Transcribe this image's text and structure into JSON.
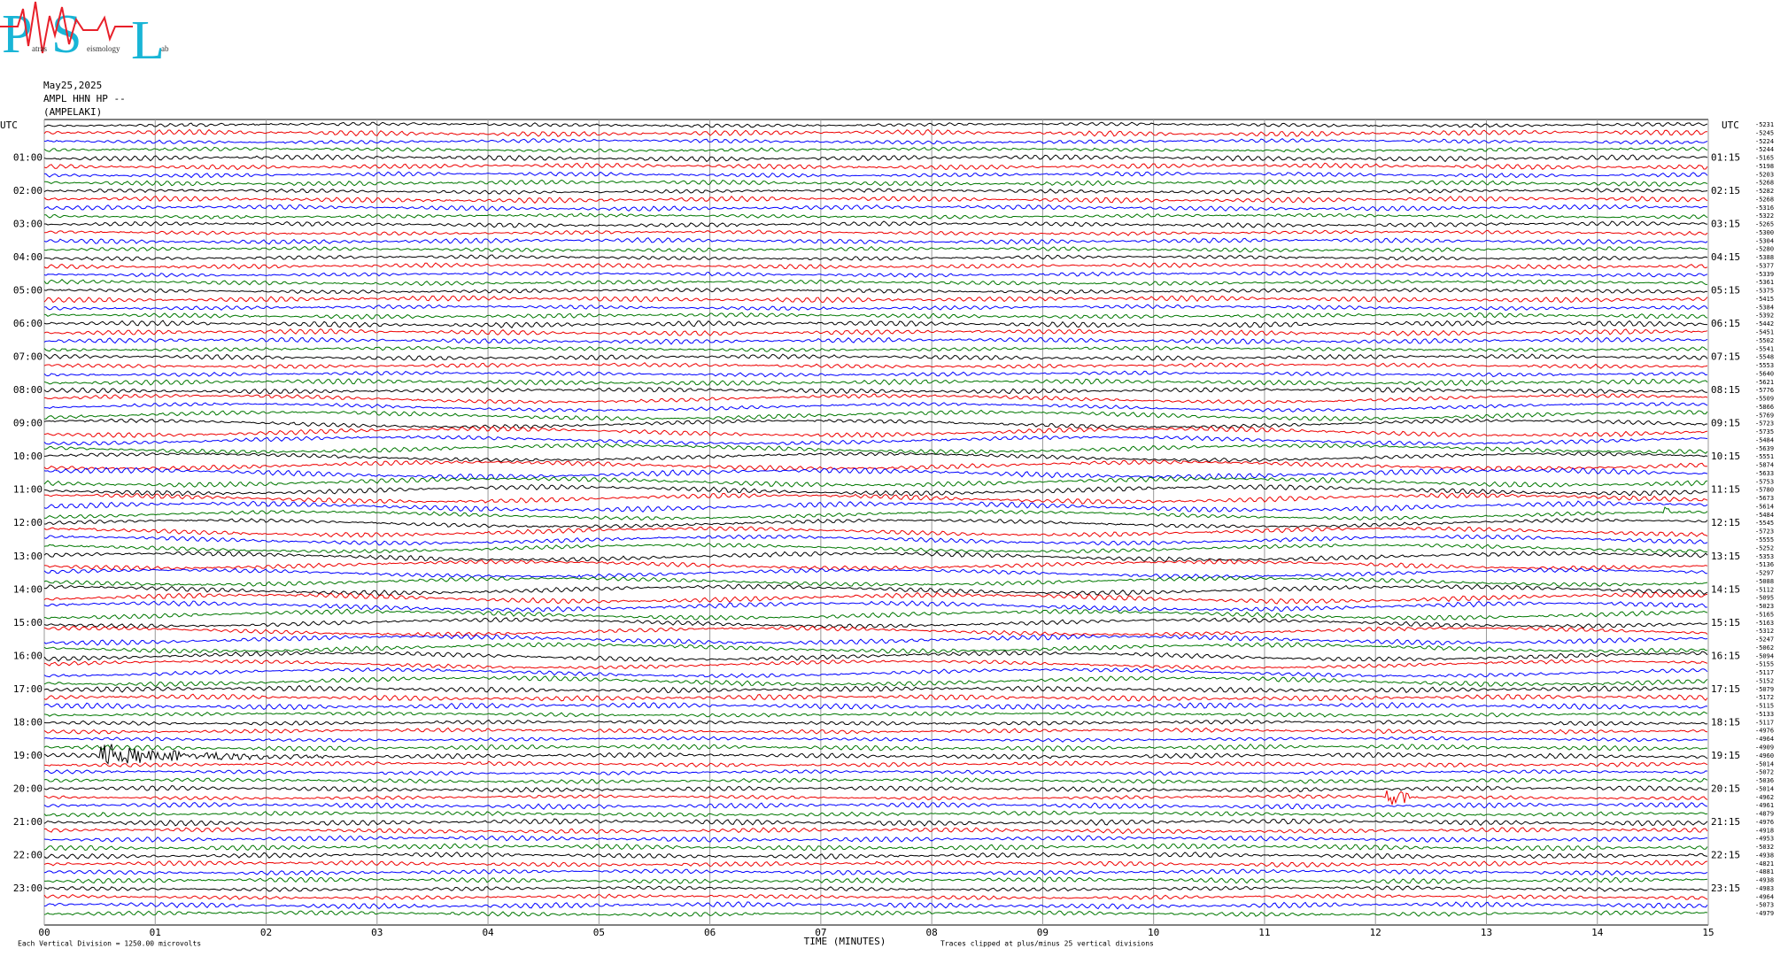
{
  "logo": {
    "letters": [
      "P",
      "S",
      "L"
    ],
    "words": [
      "atras",
      "eismology",
      "ab"
    ]
  },
  "header": {
    "date": "May25,2025",
    "station": "AMPL HHN HP --",
    "site": "(AMPELAKI)"
  },
  "left_axis": {
    "title": "UTC",
    "labels": [
      "01:00",
      "02:00",
      "03:00",
      "04:00",
      "05:00",
      "06:00",
      "07:00",
      "08:00",
      "09:00",
      "10:00",
      "11:00",
      "12:00",
      "13:00",
      "14:00",
      "15:00",
      "16:00",
      "17:00",
      "18:00",
      "19:00",
      "20:00",
      "21:00",
      "22:00",
      "23:00"
    ]
  },
  "right_axis": {
    "title": "UTC",
    "labels": [
      "01:15",
      "02:15",
      "03:15",
      "04:15",
      "05:15",
      "06:15",
      "07:15",
      "08:15",
      "09:15",
      "10:15",
      "11:15",
      "12:15",
      "13:15",
      "14:15",
      "15:15",
      "16:15",
      "17:15",
      "18:15",
      "19:15",
      "20:15",
      "21:15",
      "22:15",
      "23:15"
    ]
  },
  "trace_offsets": [
    -5231,
    -5245,
    -5224,
    -5244,
    -5165,
    -5198,
    -5203,
    -5268,
    -5282,
    -5268,
    -5316,
    -5322,
    -5265,
    -5300,
    -5304,
    -5280,
    -5388,
    -5377,
    -5339,
    -5361,
    -5375,
    -5415,
    -5384,
    -5392,
    -5442,
    -5451,
    -5502,
    -5541,
    -5548,
    -5553,
    -5640,
    -5621,
    -5776,
    -5509,
    -5866,
    -5769,
    -5723,
    -5735,
    -5484,
    -5639,
    -5551,
    -5874,
    -5633,
    -5753,
    -5780,
    -5673,
    -5614,
    -5484,
    -5545,
    -5723,
    -5555,
    -5252,
    -5353,
    -5136,
    -5297,
    -5088,
    -5112,
    -5095,
    -5023,
    -5165,
    -5163,
    -5312,
    -5247,
    -5062,
    -5094,
    -5155,
    -5117,
    -5152,
    -5079,
    -5172,
    -5115,
    -5133,
    -5117,
    -4976,
    -4964,
    -4909,
    -4960,
    -5014,
    -5072,
    -5036,
    -5014,
    -4962,
    -4961,
    -4879,
    -4976,
    -4918,
    -4953,
    -5032,
    -4938,
    -4821,
    -4881,
    -4938,
    -4983,
    -4964,
    -5073,
    -4979
  ],
  "x_axis": {
    "ticks": [
      "00",
      "01",
      "02",
      "03",
      "04",
      "05",
      "06",
      "07",
      "08",
      "09",
      "10",
      "11",
      "12",
      "13",
      "14",
      "15"
    ],
    "title": "TIME (MINUTES)"
  },
  "footer": {
    "scale": "Each Vertical Division = 1250.00 microvolts",
    "clip": "Traces clipped at plus/minus 25 vertical divisions"
  }
}
